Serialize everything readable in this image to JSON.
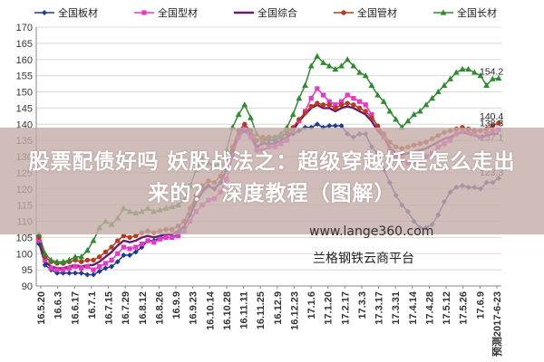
{
  "chart_data": {
    "type": "line",
    "title": "",
    "xlabel": "",
    "ylabel": "",
    "ylim": [
      90,
      170
    ],
    "yticks": [
      90,
      95,
      100,
      105,
      110,
      115,
      120,
      125,
      130,
      135,
      140,
      145,
      150,
      155,
      160,
      165,
      170
    ],
    "grid": true,
    "legend_position": "top",
    "x_tick_labels": [
      "16.5.20",
      "16.6.3",
      "16.6.17",
      "16.7.1",
      "16.7.15",
      "16.7.29",
      "16.8.12",
      "16.8.26",
      "16.9.9",
      "16.9.23",
      "16.10.14",
      "16.10.28",
      "16.11.11",
      "16.11.25",
      "16.12.9",
      "16.12.23",
      "17.1.6",
      "17.1.20",
      "17.2.17",
      "17.3.3",
      "17.3.17",
      "17.3.31",
      "17.4.14",
      "17.4.28",
      "17.5.12",
      "17.5.26",
      "17.6.9",
      "预测2017-6-23"
    ],
    "end_labels": [
      "154.2",
      "140.4",
      "138.3",
      "137.1",
      "123.3"
    ],
    "series": [
      {
        "name": "全国板材",
        "color": "#1f3a93",
        "marker": "diamond",
        "values": [
          103,
          96.5,
          95,
          94,
          94,
          94,
          94,
          94,
          93.5,
          93.5,
          94.5,
          95.5,
          96,
          97.5,
          99.5,
          99.5,
          100.5,
          102,
          104,
          104,
          105,
          105,
          105,
          106,
          108,
          112,
          118,
          120,
          121,
          120,
          122,
          126,
          132,
          136,
          138,
          136,
          132,
          135,
          135,
          135,
          136,
          137,
          137,
          138,
          139,
          139,
          140,
          139,
          139.5,
          139.5,
          139.5,
          137,
          136,
          137,
          137,
          133,
          131,
          126,
          122,
          118,
          115,
          113,
          110,
          108,
          108,
          109,
          112,
          116,
          119,
          120.5,
          121,
          120.5,
          120.5,
          120,
          122,
          122,
          123.3
        ]
      },
      {
        "name": "全国型材",
        "color": "#e836c8",
        "marker": "square",
        "values": [
          104,
          98,
          95.5,
          95,
          95,
          95.5,
          96,
          95.5,
          96,
          95,
          96,
          97,
          98,
          100,
          102,
          101.5,
          102,
          103,
          104,
          103.5,
          104.5,
          105,
          105,
          105.5,
          107,
          110,
          113,
          115,
          116.5,
          117,
          119,
          123,
          130,
          136,
          139,
          136,
          132,
          132,
          133,
          133,
          134,
          135,
          138,
          141,
          144,
          148,
          151,
          149,
          147,
          146,
          147,
          149,
          148,
          147,
          146,
          143,
          139,
          136,
          132,
          130,
          129,
          128,
          128.5,
          129,
          130,
          131,
          133,
          134,
          135,
          137,
          138,
          137.5,
          137,
          136,
          137,
          138,
          138.3
        ]
      },
      {
        "name": "全国综合",
        "color": "#6a1b6e",
        "marker": "none",
        "values": [
          104,
          97.5,
          96,
          95.5,
          95.5,
          96,
          96.5,
          96,
          96.5,
          96.5,
          97.5,
          99,
          100.5,
          102.5,
          104,
          103.5,
          104,
          105,
          105.5,
          105,
          105.5,
          106,
          106,
          107,
          108.5,
          112,
          116,
          119,
          121,
          120,
          122,
          126,
          132,
          137,
          140,
          137,
          133,
          134,
          134,
          134,
          135,
          136,
          138,
          141,
          143,
          145,
          146,
          145,
          145,
          144,
          145,
          145.5,
          145,
          144,
          143,
          141,
          138,
          136,
          133,
          131,
          130.5,
          131,
          131.5,
          132,
          132.5,
          133.5,
          134.5,
          135.5,
          136,
          137,
          137.5,
          137,
          136.5,
          136,
          136.5,
          137,
          137.1
        ]
      },
      {
        "name": "全国管材",
        "color": "#b83a1b",
        "marker": "circle",
        "values": [
          105,
          99,
          97.5,
          97,
          97,
          97.5,
          98,
          97.5,
          98,
          98,
          99,
          100.5,
          102,
          104,
          105.5,
          105,
          105.5,
          106.5,
          107,
          106.5,
          107,
          107.5,
          107.5,
          108.5,
          110,
          114,
          118,
          121,
          122.5,
          122,
          124,
          128,
          133,
          138,
          140,
          138,
          135,
          136,
          136,
          136,
          136.5,
          137.5,
          139,
          141.5,
          143.5,
          145.5,
          146.5,
          146,
          146,
          145,
          146,
          146.5,
          146,
          145,
          144,
          142,
          139.5,
          137,
          134.5,
          133,
          132.5,
          133,
          133.5,
          134,
          134.5,
          135.5,
          136.5,
          137.5,
          138,
          138.5,
          139,
          138.5,
          138,
          138,
          138.5,
          139.5,
          140.4
        ]
      },
      {
        "name": "全国长材",
        "color": "#2e8b2e",
        "marker": "triangle",
        "values": [
          106,
          100,
          98,
          97.5,
          97.5,
          98,
          99,
          99,
          101,
          104,
          108,
          110,
          109,
          111,
          114,
          113,
          112.5,
          113,
          114,
          113,
          113.5,
          114,
          114.5,
          115,
          116.5,
          121,
          126,
          129,
          128,
          127,
          128,
          132,
          139,
          143,
          146,
          142,
          137,
          135,
          136,
          136,
          137,
          139,
          143,
          148,
          152,
          158,
          161,
          159,
          158,
          157,
          158,
          160,
          158,
          156,
          155,
          152,
          149,
          147,
          144,
          141.5,
          139,
          141,
          143,
          144,
          146,
          148,
          150,
          152,
          154,
          156,
          157,
          157,
          156,
          155,
          152,
          154,
          154.2
        ]
      }
    ]
  },
  "banner": {
    "line1": "股票配债好吗 妖股战法之：超级穿越妖是怎么走出",
    "line2": "来的？ 深度教程（图解）"
  },
  "watermark": {
    "url": "www.lange360.com",
    "name": "兰格钢铁云商平台"
  }
}
